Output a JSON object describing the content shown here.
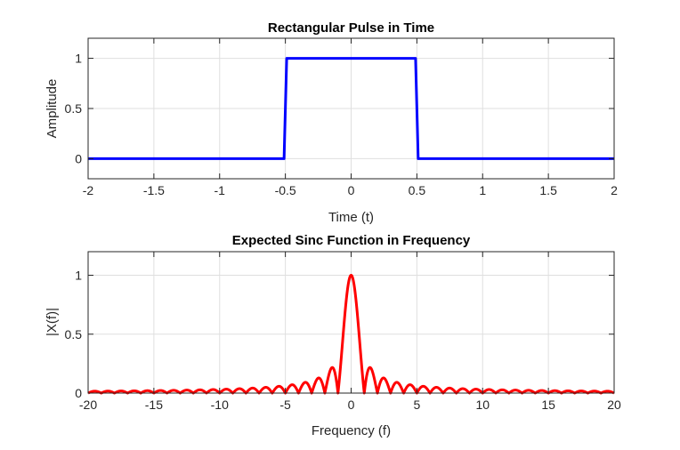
{
  "chart_data": [
    {
      "type": "line",
      "title": "Rectangular Pulse in Time",
      "xlabel": "Time (t)",
      "ylabel": "Amplitude",
      "xlim": [
        -2,
        2
      ],
      "ylim": [
        -0.2,
        1.2
      ],
      "xticks": [
        -2,
        -1.5,
        -1,
        -0.5,
        0,
        0.5,
        1,
        1.5,
        2
      ],
      "xtick_labels": [
        "-2",
        "-1.5",
        "-1",
        "-0.5",
        "0",
        "0.5",
        "1",
        "1.5",
        "2"
      ],
      "yticks": [
        0,
        0.5,
        1
      ],
      "ytick_labels": [
        "0",
        "0.5",
        "1"
      ],
      "grid": true,
      "series": [
        {
          "color": "#0000ff",
          "x": [
            -2,
            -0.51,
            -0.49,
            0.49,
            0.51,
            2
          ],
          "y": [
            0,
            0,
            1,
            1,
            0,
            0
          ]
        }
      ]
    },
    {
      "type": "line",
      "title": "Expected Sinc Function in Frequency",
      "xlabel": "Frequency (f)",
      "ylabel": "|X(f)|",
      "xlim": [
        -20,
        20
      ],
      "ylim": [
        0,
        1.2
      ],
      "xticks": [
        -20,
        -15,
        -10,
        -5,
        0,
        5,
        10,
        15,
        20
      ],
      "xtick_labels": [
        "-20",
        "-15",
        "-10",
        "-5",
        "0",
        "5",
        "10",
        "15",
        "20"
      ],
      "yticks": [
        0,
        0.5,
        1
      ],
      "ytick_labels": [
        "0",
        "0.5",
        "1"
      ],
      "grid": true,
      "series": [
        {
          "color": "#ff0000",
          "function": "|sinc(f)|",
          "x_range": [
            -20,
            20
          ],
          "peak": 1,
          "first_sidelobe": 0.21
        }
      ]
    }
  ]
}
